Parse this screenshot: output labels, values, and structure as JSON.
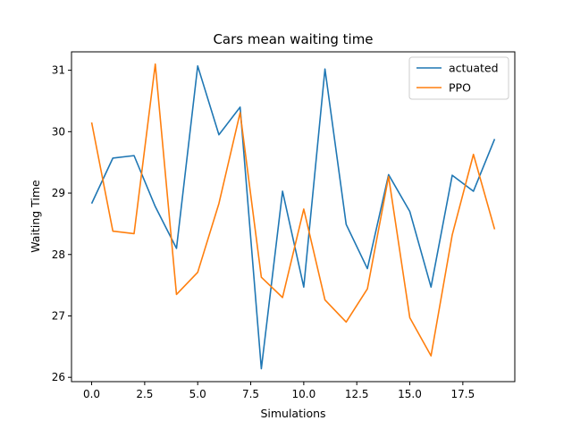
{
  "chart_data": {
    "type": "line",
    "title": "Cars mean waiting time",
    "xlabel": "Simulations",
    "ylabel": "Waiting Time",
    "xlim": [
      -0.95,
      19.95
    ],
    "ylim": [
      25.93,
      31.3
    ],
    "x_ticks": [
      0.0,
      2.5,
      5.0,
      7.5,
      10.0,
      12.5,
      15.0,
      17.5
    ],
    "x_tick_labels": [
      "0.0",
      "2.5",
      "5.0",
      "7.5",
      "10.0",
      "12.5",
      "15.0",
      "17.5"
    ],
    "y_ticks": [
      26,
      27,
      28,
      29,
      30,
      31
    ],
    "y_tick_labels": [
      "26",
      "27",
      "28",
      "29",
      "30",
      "31"
    ],
    "grid": false,
    "legend_position": "top-right",
    "x": [
      0,
      1,
      2,
      3,
      4,
      5,
      6,
      7,
      8,
      9,
      10,
      11,
      12,
      13,
      14,
      15,
      16,
      17,
      18,
      19
    ],
    "series": [
      {
        "name": "actuated",
        "color": "#1f77b4",
        "values": [
          28.83,
          29.57,
          29.61,
          28.78,
          28.1,
          31.07,
          29.95,
          30.4,
          26.14,
          29.03,
          27.47,
          31.02,
          28.49,
          27.77,
          29.3,
          28.7,
          27.47,
          29.29,
          29.03,
          29.88
        ]
      },
      {
        "name": "PPO",
        "color": "#ff7f0e",
        "values": [
          30.15,
          28.38,
          28.34,
          31.1,
          27.35,
          27.71,
          28.83,
          30.31,
          27.63,
          27.3,
          28.74,
          27.26,
          26.9,
          27.44,
          29.27,
          26.97,
          26.35,
          28.32,
          29.63,
          28.41
        ]
      }
    ]
  }
}
